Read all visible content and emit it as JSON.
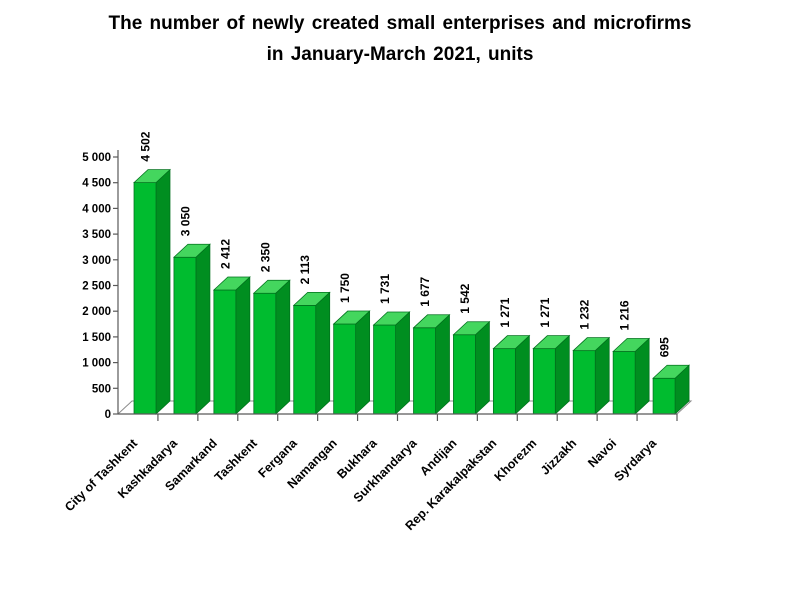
{
  "title": {
    "line1": "The number of newly created small enterprises and microfirms",
    "line2": "in January-March 2021, units"
  },
  "chart_data": {
    "type": "bar",
    "subtype": "3d-column",
    "title": "The number of newly created small enterprises and microfirms in January-March 2021, units",
    "categories": [
      "City of Tashkent",
      "Kashkadarya",
      "Samarkand",
      "Tashkent",
      "Fergana",
      "Namangan",
      "Bukhara",
      "Surkhandarya",
      "Andijan",
      "Rep. Karakalpakstan",
      "Khorezm",
      "Jizzakh",
      "Navoi",
      "Syrdarya"
    ],
    "values": [
      4502,
      3050,
      2412,
      2350,
      2113,
      1750,
      1731,
      1677,
      1542,
      1271,
      1271,
      1232,
      1216,
      695
    ],
    "value_labels": [
      "4 502",
      "3 050",
      "2 412",
      "2 350",
      "2 113",
      "1 750",
      "1 731",
      "1 677",
      "1 542",
      "1 271",
      "1 271",
      "1 232",
      "1 216",
      "695"
    ],
    "xlabel": "",
    "ylabel": "",
    "ylim": [
      0,
      5000
    ],
    "ytick_step": 500,
    "ytick_labels": [
      "0",
      "500",
      "1 000",
      "1 500",
      "2 000",
      "2 500",
      "3 000",
      "3 500",
      "4 000",
      "4 500",
      "5 000"
    ],
    "grid": false,
    "legend": "none",
    "colors": {
      "bar_front": "#00BC2F",
      "bar_top": "#44D65E",
      "bar_side": "#008E20",
      "bar_outline": "#00701C",
      "axis": "#595959",
      "floor_edge": "#8C8C8C",
      "text": "#000000",
      "background": "#FFFFFF"
    }
  }
}
